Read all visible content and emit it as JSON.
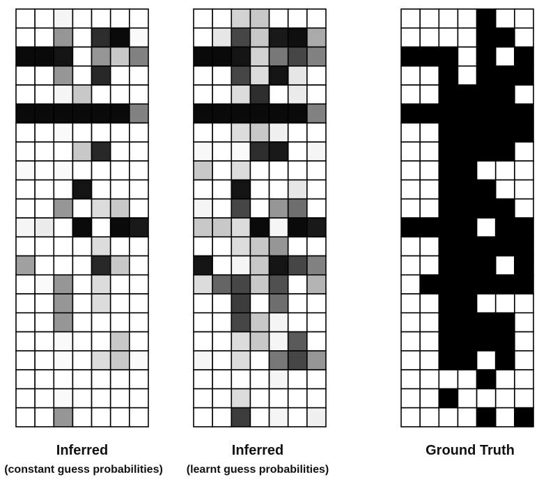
{
  "panels": [
    {
      "title": "Inferred",
      "subtitle": "(constant guess probabilities)",
      "grid": [
        [
          255,
          255,
          245,
          255,
          255,
          255,
          255
        ],
        [
          255,
          255,
          150,
          255,
          45,
          10,
          250
        ],
        [
          10,
          10,
          20,
          255,
          150,
          200,
          130
        ],
        [
          255,
          255,
          150,
          255,
          40,
          255,
          255
        ],
        [
          255,
          255,
          245,
          200,
          255,
          255,
          255
        ],
        [
          10,
          10,
          10,
          10,
          10,
          10,
          130
        ],
        [
          255,
          255,
          250,
          255,
          255,
          255,
          255
        ],
        [
          255,
          255,
          255,
          200,
          40,
          255,
          255
        ],
        [
          250,
          255,
          250,
          255,
          255,
          255,
          255
        ],
        [
          255,
          255,
          255,
          20,
          255,
          255,
          255
        ],
        [
          255,
          255,
          150,
          255,
          220,
          200,
          255
        ],
        [
          245,
          235,
          255,
          10,
          255,
          10,
          25
        ],
        [
          255,
          255,
          255,
          255,
          220,
          255,
          255
        ],
        [
          160,
          255,
          255,
          255,
          40,
          200,
          255
        ],
        [
          255,
          250,
          150,
          255,
          220,
          255,
          255
        ],
        [
          255,
          255,
          150,
          255,
          220,
          255,
          255
        ],
        [
          255,
          255,
          150,
          255,
          255,
          255,
          255
        ],
        [
          255,
          255,
          250,
          255,
          255,
          200,
          255
        ],
        [
          255,
          255,
          250,
          255,
          220,
          200,
          250
        ],
        [
          255,
          255,
          255,
          255,
          255,
          255,
          255
        ],
        [
          255,
          255,
          250,
          255,
          255,
          255,
          255
        ],
        [
          255,
          255,
          150,
          255,
          255,
          255,
          255
        ]
      ]
    },
    {
      "title": "Inferred",
      "subtitle": "(learnt guess probabilities)",
      "grid": [
        [
          255,
          255,
          210,
          200,
          255,
          255,
          255
        ],
        [
          255,
          230,
          70,
          200,
          25,
          15,
          170
        ],
        [
          10,
          10,
          20,
          210,
          120,
          70,
          130
        ],
        [
          255,
          255,
          70,
          220,
          20,
          230,
          255
        ],
        [
          255,
          255,
          220,
          45,
          255,
          235,
          255
        ],
        [
          10,
          10,
          10,
          10,
          10,
          10,
          130
        ],
        [
          255,
          255,
          220,
          200,
          240,
          255,
          255
        ],
        [
          248,
          255,
          250,
          45,
          25,
          255,
          245
        ],
        [
          200,
          255,
          220,
          255,
          255,
          255,
          255
        ],
        [
          255,
          255,
          20,
          255,
          255,
          230,
          255
        ],
        [
          245,
          255,
          70,
          255,
          150,
          110,
          255
        ],
        [
          200,
          200,
          220,
          10,
          245,
          10,
          25
        ],
        [
          255,
          255,
          220,
          200,
          150,
          255,
          255
        ],
        [
          20,
          255,
          245,
          200,
          20,
          70,
          130
        ],
        [
          220,
          100,
          70,
          200,
          80,
          255,
          180
        ],
        [
          255,
          255,
          60,
          255,
          110,
          255,
          255
        ],
        [
          255,
          255,
          70,
          200,
          245,
          255,
          255
        ],
        [
          255,
          255,
          220,
          200,
          245,
          90,
          255
        ],
        [
          245,
          255,
          220,
          255,
          120,
          70,
          150
        ],
        [
          255,
          255,
          255,
          255,
          245,
          255,
          255
        ],
        [
          255,
          255,
          220,
          255,
          255,
          255,
          255
        ],
        [
          255,
          255,
          60,
          255,
          245,
          255,
          240
        ]
      ]
    },
    {
      "title": "Ground Truth",
      "subtitle": "",
      "grid": [
        [
          255,
          255,
          255,
          255,
          0,
          255,
          255
        ],
        [
          255,
          255,
          255,
          255,
          0,
          0,
          255
        ],
        [
          0,
          0,
          0,
          255,
          0,
          255,
          0
        ],
        [
          255,
          255,
          0,
          255,
          0,
          0,
          0
        ],
        [
          255,
          255,
          0,
          0,
          0,
          0,
          255
        ],
        [
          0,
          0,
          0,
          0,
          0,
          0,
          0
        ],
        [
          255,
          255,
          0,
          0,
          0,
          0,
          0
        ],
        [
          255,
          255,
          0,
          0,
          0,
          0,
          255
        ],
        [
          255,
          255,
          0,
          0,
          255,
          255,
          255
        ],
        [
          255,
          255,
          0,
          0,
          0,
          255,
          255
        ],
        [
          255,
          255,
          0,
          0,
          0,
          0,
          255
        ],
        [
          0,
          0,
          0,
          0,
          255,
          0,
          0
        ],
        [
          255,
          255,
          0,
          0,
          0,
          0,
          0
        ],
        [
          255,
          255,
          0,
          0,
          0,
          255,
          0
        ],
        [
          255,
          0,
          0,
          0,
          0,
          0,
          0
        ],
        [
          255,
          255,
          0,
          0,
          255,
          255,
          255
        ],
        [
          255,
          255,
          0,
          0,
          0,
          0,
          255
        ],
        [
          255,
          255,
          0,
          0,
          0,
          0,
          255
        ],
        [
          255,
          255,
          0,
          0,
          255,
          0,
          255
        ],
        [
          255,
          255,
          255,
          255,
          0,
          255,
          255
        ],
        [
          255,
          255,
          0,
          255,
          255,
          255,
          255
        ],
        [
          255,
          255,
          255,
          255,
          0,
          255,
          0
        ]
      ]
    }
  ]
}
